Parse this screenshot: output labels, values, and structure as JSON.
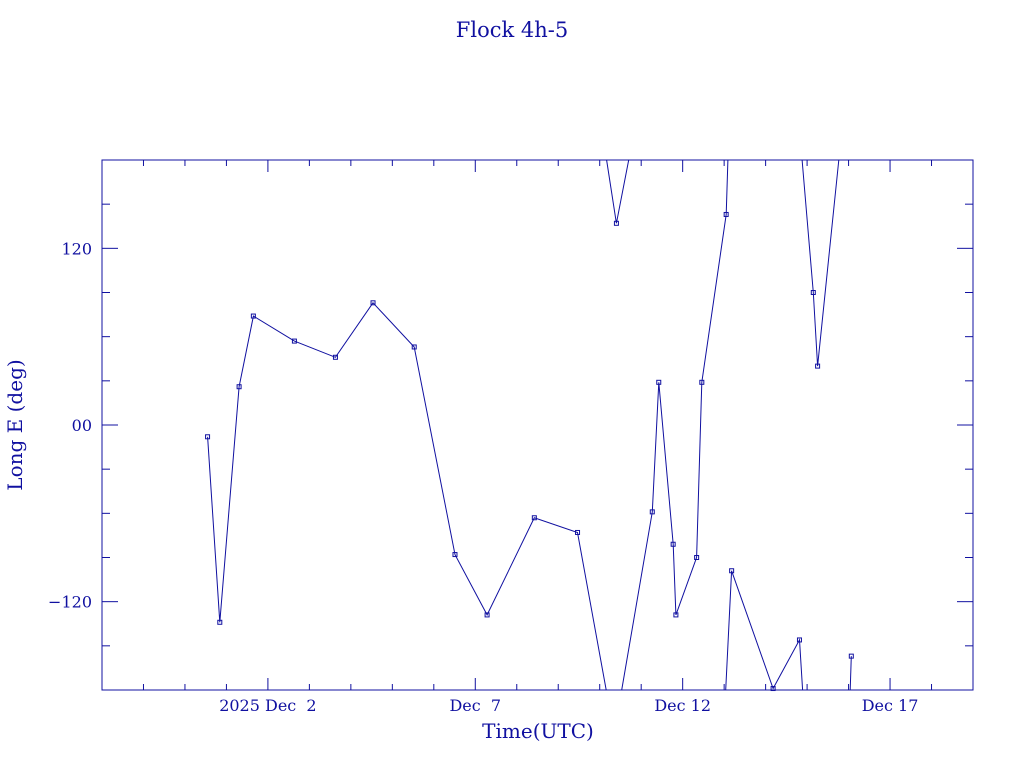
{
  "chart_data": {
    "type": "line",
    "title": "Flock 4h-5",
    "xlabel": "Time(UTC)",
    "ylabel": "Long E (deg)",
    "xlim": [
      "2025-11-28T00:00",
      "2025-12-19T00:00"
    ],
    "ylim": [
      -180,
      180
    ],
    "x_tick_labels": [
      {
        "x": "2025-12-02T00:00",
        "label": "2025 Dec  2"
      },
      {
        "x": "2025-12-07T00:00",
        "label": "Dec  7"
      },
      {
        "x": "2025-12-12T00:00",
        "label": "Dec 12"
      },
      {
        "x": "2025-12-17T00:00",
        "label": "Dec 17"
      }
    ],
    "y_tick_labels": [
      {
        "y": 120,
        "label": "120"
      },
      {
        "y": 0,
        "label": "00"
      },
      {
        "y": -120,
        "label": "−120"
      }
    ],
    "grid": false,
    "legend": "none",
    "color": "#1010a0",
    "series": [
      {
        "marker": "square",
        "points": [
          {
            "x": "2025-11-30T13:05",
            "y": -8
          },
          {
            "x": "2025-11-30T20:10",
            "y": -134
          },
          {
            "x": "2025-12-01T07:20",
            "y": 26
          },
          {
            "x": "2025-12-01T15:35",
            "y": 74
          },
          {
            "x": "2025-12-02T15:20",
            "y": 57
          },
          {
            "x": "2025-12-03T15:05",
            "y": 46
          },
          {
            "x": "2025-12-04T12:50",
            "y": 83
          },
          {
            "x": "2025-12-05T12:40",
            "y": 53
          },
          {
            "x": "2025-12-06T12:15",
            "y": -88
          },
          {
            "x": "2025-12-07T06:50",
            "y": -129
          },
          {
            "x": "2025-12-08T10:10",
            "y": -63
          },
          {
            "x": "2025-12-09T11:10",
            "y": -73
          },
          {
            "x": "2025-12-10T03:45",
            "y": -180,
            "break_after": true
          },
          {
            "x": "2025-12-10T04:00",
            "y": 180
          },
          {
            "x": "2025-12-10T09:40",
            "y": 137
          },
          {
            "x": "2025-12-10T16:45",
            "y": 180,
            "break_after": true
          },
          {
            "x": "2025-12-10T12:45",
            "y": -180
          },
          {
            "x": "2025-12-11T06:25",
            "y": -59
          },
          {
            "x": "2025-12-11T10:10",
            "y": 29
          },
          {
            "x": "2025-12-11T18:30",
            "y": -81
          },
          {
            "x": "2025-12-11T20:05",
            "y": -129
          },
          {
            "x": "2025-12-12T08:05",
            "y": -90
          },
          {
            "x": "2025-12-12T11:05",
            "y": 29
          },
          {
            "x": "2025-12-13T01:10",
            "y": 143
          },
          {
            "x": "2025-12-13T02:10",
            "y": 180,
            "break_after": true
          },
          {
            "x": "2025-12-13T00:55",
            "y": -180
          },
          {
            "x": "2025-12-13T04:20",
            "y": -99
          },
          {
            "x": "2025-12-14T04:20",
            "y": -179
          },
          {
            "x": "2025-12-14T19:35",
            "y": -146
          },
          {
            "x": "2025-12-14T21:25",
            "y": -180,
            "break_after": true
          },
          {
            "x": "2025-12-14T21:05",
            "y": 180
          },
          {
            "x": "2025-12-15T03:35",
            "y": 90
          },
          {
            "x": "2025-12-15T06:05",
            "y": 40
          },
          {
            "x": "2025-12-15T18:20",
            "y": 180,
            "break_after": true
          },
          {
            "x": "2025-12-16T00:55",
            "y": -180
          },
          {
            "x": "2025-12-16T01:35",
            "y": -157
          }
        ]
      }
    ]
  }
}
